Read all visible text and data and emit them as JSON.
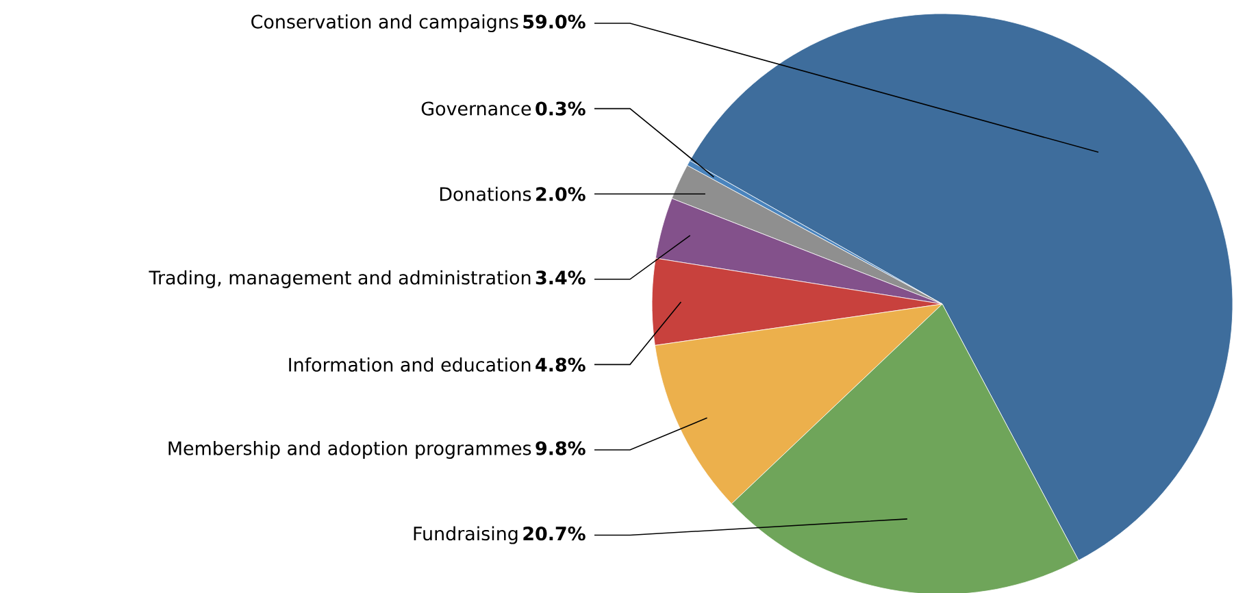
{
  "chart_data": {
    "type": "pie",
    "categories": [
      "Conservation and campaigns",
      "Governance",
      "Donations",
      "Trading, management and administration",
      "Information and education",
      "Membership and adoption programmes",
      "Fundraising"
    ],
    "values": [
      59.0,
      0.3,
      2.0,
      3.4,
      4.8,
      9.8,
      20.7
    ],
    "value_labels": [
      "59.0%",
      "0.3%",
      "2.0%",
      "3.4%",
      "4.8%",
      "9.8%",
      "20.7%"
    ],
    "colors": [
      "#3e6d9c",
      "#4a84bd",
      "#8f8f8f",
      "#83518b",
      "#c8413d",
      "#ecb04c",
      "#6fa55a"
    ]
  }
}
